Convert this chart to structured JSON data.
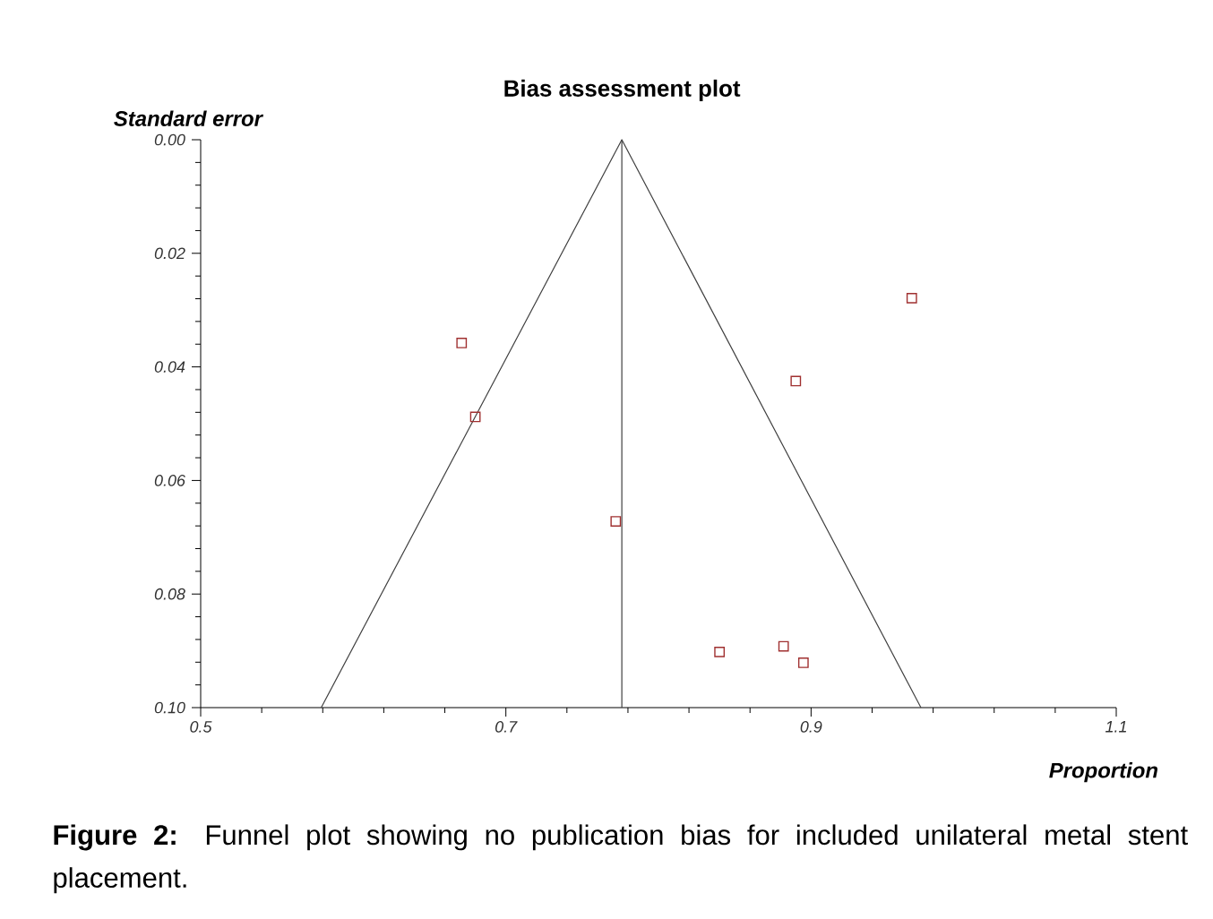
{
  "chart_data": {
    "type": "scatter",
    "title": "Bias assessment plot",
    "xlabel": "Proportion",
    "ylabel": "Standard error",
    "annotations": [
      "**Figure 2:** Funnel plot showing no publication bias for included unilateral metal stent placement."
    ],
    "xlim": [
      0.5,
      1.1
    ],
    "xticks": [
      0.5,
      0.7,
      0.9,
      1.1
    ],
    "ylim": [
      0.1,
      0
    ],
    "yticks": [
      {
        "value": 0,
        "label": "0.00"
      },
      {
        "value": 0.02,
        "label": "0.02"
      },
      {
        "value": 0.04,
        "label": "0.04"
      },
      {
        "value": 0.06,
        "label": "0.06"
      },
      {
        "value": 0.08,
        "label": "0.08"
      },
      {
        "value": 0.1,
        "label": "0.10"
      }
    ],
    "marker": "square",
    "grid": false,
    "series": [
      {
        "type": "scatter",
        "color": "#a03030",
        "x": [
          0.671,
          0.68,
          0.966,
          0.89,
          0.772,
          0.84,
          0.882,
          0.895
        ],
        "values": [
          0.0358,
          0.0488,
          0.0279,
          0.0425,
          0.0672,
          0.0902,
          0.0892,
          0.0921
        ]
      },
      {
        "type": "line",
        "color": "#404040",
        "marker": "none",
        "x": [
          0.579,
          0.776,
          0.972
        ],
        "values": [
          0.1,
          0,
          0.1
        ]
      }
    ],
    "ref_lines": [
      {
        "axis": "x",
        "value": 0.776,
        "color": "#404040"
      }
    ]
  }
}
